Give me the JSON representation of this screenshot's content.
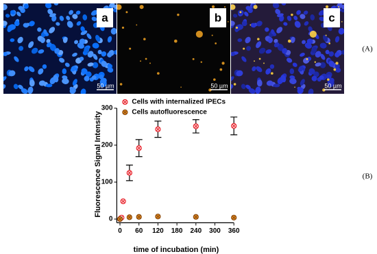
{
  "figure": {
    "panel_a": {
      "label": "a",
      "scale": "50 µm"
    },
    "panel_b": {
      "label": "b",
      "scale": "50 µm"
    },
    "panel_c": {
      "label": "c",
      "scale": "50 µm"
    },
    "part_a": "(A)",
    "part_b": "(B)"
  },
  "chart_data": {
    "type": "scatter",
    "xlabel": "time of incubation (min)",
    "ylabel": "Fluorescence Signal Intensity",
    "xlim": [
      -10,
      360
    ],
    "xticks": [
      0,
      60,
      120,
      180,
      240,
      300,
      360
    ],
    "ylim": [
      -10,
      300
    ],
    "yticks": [
      0,
      100,
      200,
      300
    ],
    "legend": "upper left",
    "series": [
      {
        "name": "Cells with internalized IPECs",
        "color": "#e8202a",
        "x": [
          0,
          2,
          5,
          10,
          30,
          60,
          120,
          240,
          360
        ],
        "values": [
          0,
          2,
          4,
          48,
          125,
          192,
          243,
          251,
          252
        ],
        "errors": [
          null,
          null,
          null,
          null,
          21,
          23,
          22,
          18,
          24
        ]
      },
      {
        "name": "Cells autofluorescence",
        "color": "#e08a1e",
        "x": [
          0,
          30,
          60,
          120,
          240,
          360
        ],
        "values": [
          0,
          5,
          6,
          7,
          6,
          4
        ]
      }
    ]
  }
}
